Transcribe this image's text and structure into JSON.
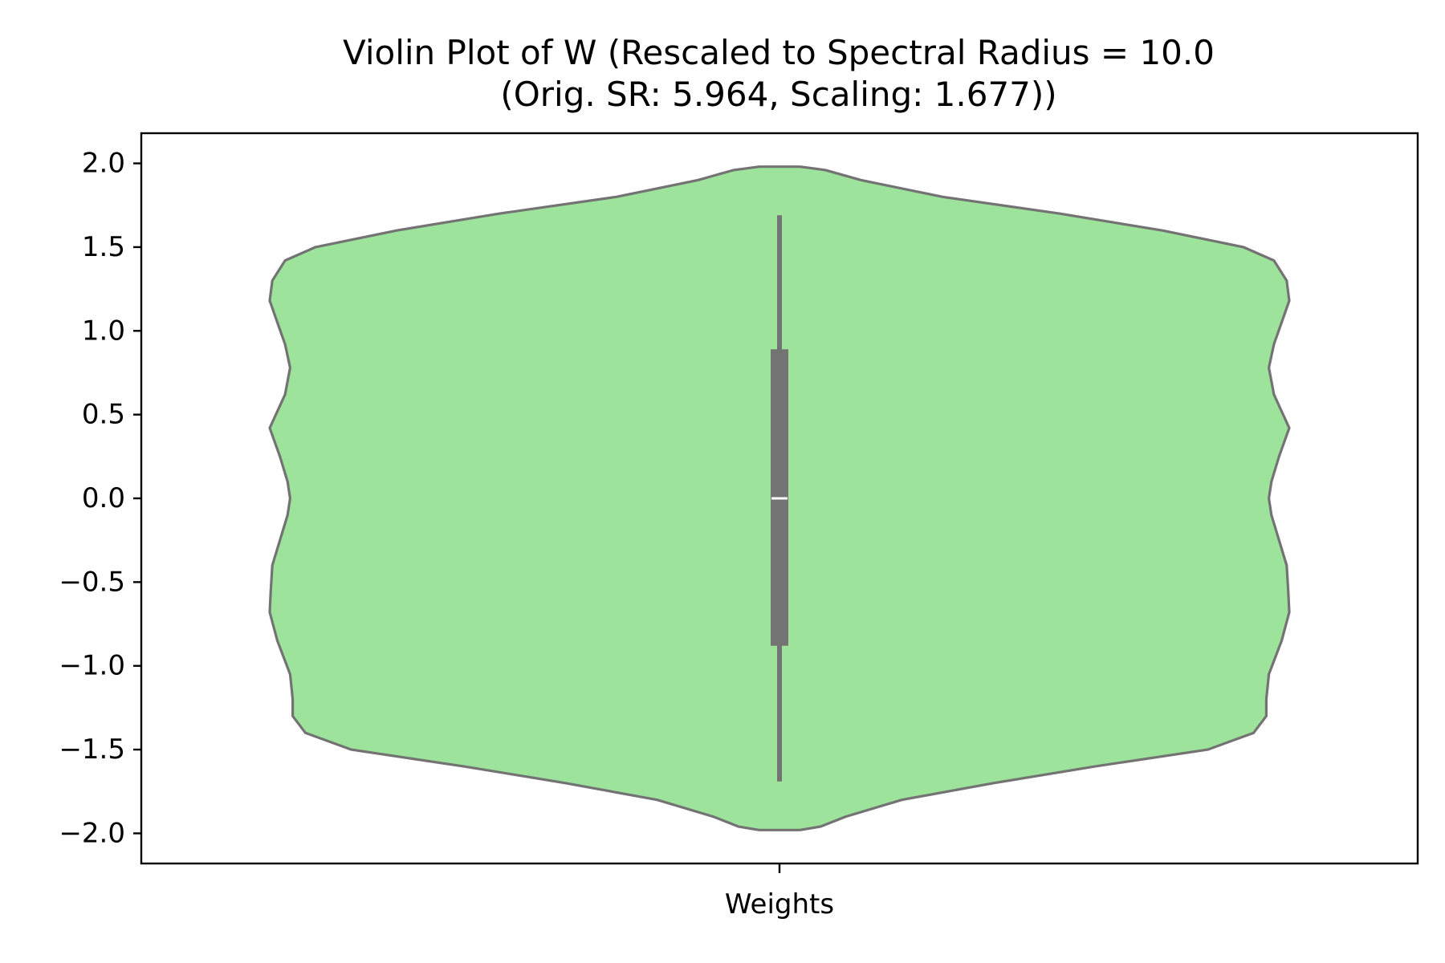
{
  "chart_data": {
    "type": "violin",
    "title_line1": "Violin Plot of W (Rescaled to Spectral Radius = 10.0",
    "title_line2": "(Orig. SR: 5.964, Scaling: 1.677))",
    "xlabel": "",
    "ylabel": "",
    "categories": [
      "Weights"
    ],
    "ylim": [
      -2.18,
      2.18
    ],
    "yticks": [
      2.0,
      1.5,
      1.0,
      0.5,
      0.0,
      -0.5,
      -1.0,
      -1.5,
      -2.0
    ],
    "ytick_labels": [
      "2.0",
      "1.5",
      "1.0",
      "0.5",
      "0.0",
      "−0.5",
      "−1.0",
      "−1.5",
      "−2.0"
    ],
    "grid": false,
    "violin": {
      "fill_color": "#9ee39c",
      "edge_color": "#737373",
      "density_profile": [
        {
          "y": 1.98,
          "w": 0.04
        },
        {
          "y": 1.96,
          "w": 0.09
        },
        {
          "y": 1.9,
          "w": 0.16
        },
        {
          "y": 1.8,
          "w": 0.32
        },
        {
          "y": 1.7,
          "w": 0.55
        },
        {
          "y": 1.6,
          "w": 0.75
        },
        {
          "y": 1.5,
          "w": 0.91
        },
        {
          "y": 1.42,
          "w": 0.97
        },
        {
          "y": 1.3,
          "w": 0.995
        },
        {
          "y": 1.18,
          "w": 1.0
        },
        {
          "y": 1.05,
          "w": 0.985
        },
        {
          "y": 0.92,
          "w": 0.97
        },
        {
          "y": 0.78,
          "w": 0.96
        },
        {
          "y": 0.62,
          "w": 0.97
        },
        {
          "y": 0.42,
          "w": 1.0
        },
        {
          "y": 0.25,
          "w": 0.98
        },
        {
          "y": 0.1,
          "w": 0.965
        },
        {
          "y": 0.0,
          "w": 0.96
        },
        {
          "y": -0.1,
          "w": 0.965
        },
        {
          "y": -0.25,
          "w": 0.98
        },
        {
          "y": -0.4,
          "w": 0.995
        },
        {
          "y": -0.55,
          "w": 0.998
        },
        {
          "y": -0.68,
          "w": 1.0
        },
        {
          "y": -0.85,
          "w": 0.985
        },
        {
          "y": -1.05,
          "w": 0.96
        },
        {
          "y": -1.2,
          "w": 0.955
        },
        {
          "y": -1.3,
          "w": 0.955
        },
        {
          "y": -1.4,
          "w": 0.93
        },
        {
          "y": -1.5,
          "w": 0.84
        },
        {
          "y": -1.6,
          "w": 0.62
        },
        {
          "y": -1.7,
          "w": 0.42
        },
        {
          "y": -1.8,
          "w": 0.24
        },
        {
          "y": -1.9,
          "w": 0.13
        },
        {
          "y": -1.96,
          "w": 0.08
        },
        {
          "y": -1.98,
          "w": 0.04
        }
      ]
    },
    "box": {
      "whisker_low": -1.69,
      "q1": -0.88,
      "median": 0.0,
      "q3": 0.89,
      "whisker_high": 1.69,
      "color": "#737373",
      "median_color": "#ffffff"
    }
  }
}
